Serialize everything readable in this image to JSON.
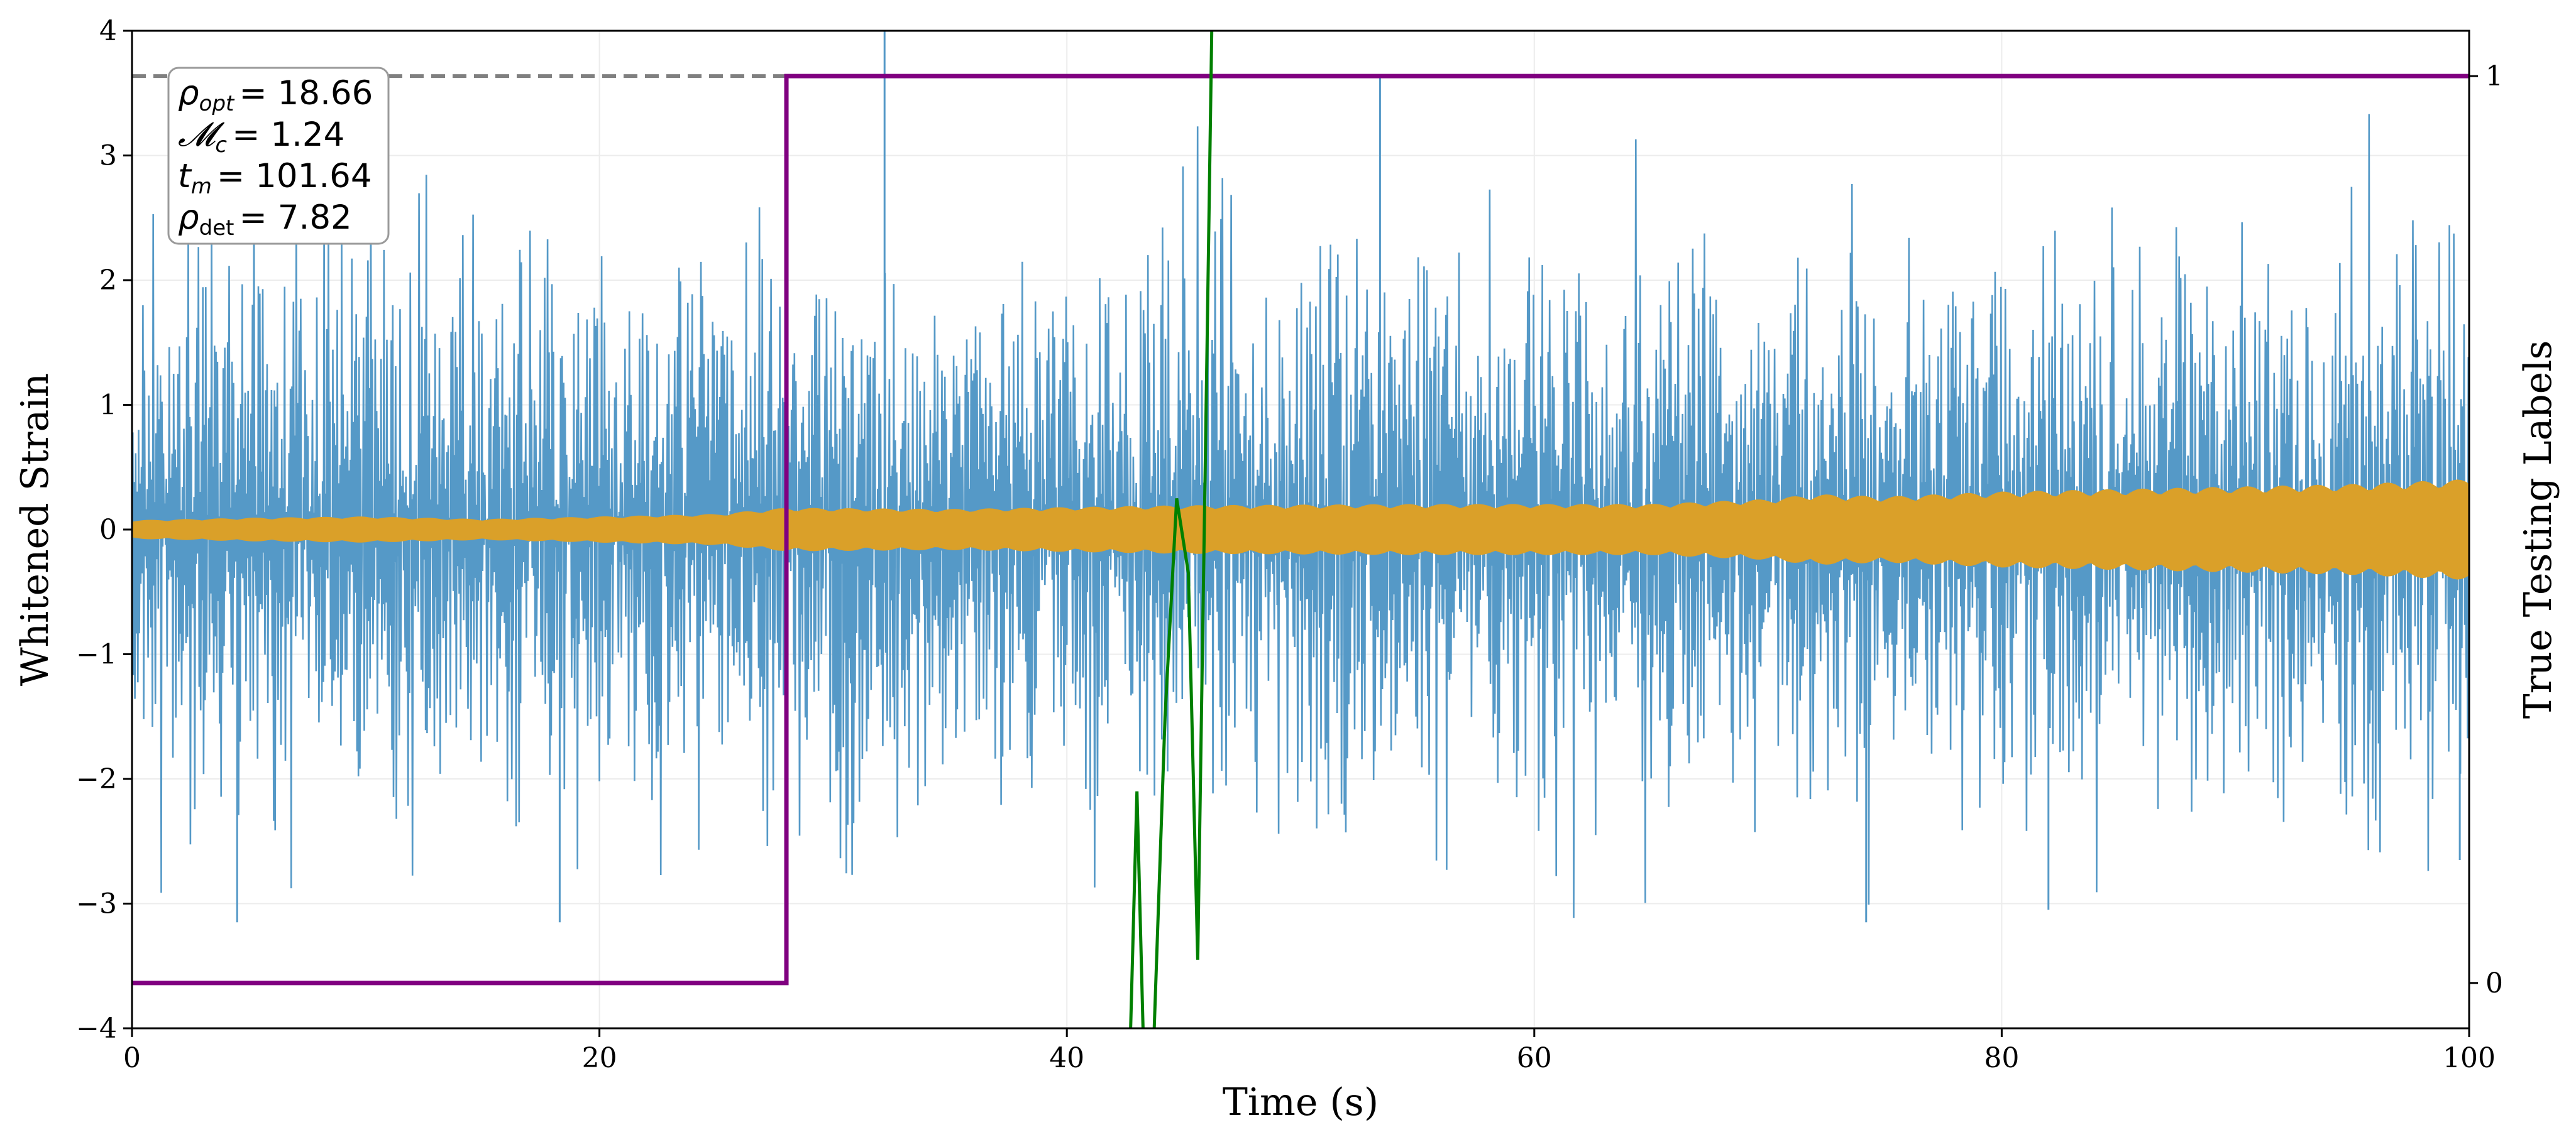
{
  "chart_data": {
    "type": "line",
    "title": "",
    "xlabel": "Time (s)",
    "ylabel": "Whitened Strain",
    "ylabel_right": "True Testing Labels",
    "xlim": [
      0,
      100
    ],
    "ylim": [
      -4,
      4
    ],
    "ylim_right": [
      -0.05,
      1.05
    ],
    "xticks": [
      "0",
      "20",
      "40",
      "60",
      "80",
      "100"
    ],
    "yticks": [
      "−4",
      "−3",
      "−2",
      "−1",
      "0",
      "1",
      "2",
      "3",
      "4"
    ],
    "yticks_right": [
      "0",
      "1"
    ],
    "grid": true,
    "legend": "none",
    "annotation_box": {
      "position": "top-left",
      "lines": [
        {
          "symbol": "ρ",
          "sub": "opt",
          "value": "= 18.66"
        },
        {
          "symbol": "𝓜",
          "sub": "c",
          "value": "= 1.24"
        },
        {
          "symbol": "t",
          "sub": "m",
          "value": "= 101.64"
        },
        {
          "symbol": "ρ",
          "sub": "det",
          "value": "= 7.82"
        }
      ]
    },
    "series": [
      {
        "kind": "noise",
        "color": "#5599c7",
        "approx_envelope": 2.5,
        "peak_spikes": [
          {
            "x": 32.2,
            "y": 4.0
          },
          {
            "x": 53.4,
            "y": 3.65
          },
          {
            "x": 4.5,
            "y": -3.15
          },
          {
            "x": 18.3,
            "y": -3.15
          },
          {
            "x": 74.2,
            "y": -3.15
          },
          {
            "x": 82.0,
            "y": -3.05
          },
          {
            "x": 99.6,
            "y": -2.65
          }
        ]
      },
      {
        "kind": "signal",
        "color": "#daa029",
        "x": [
          0,
          5,
          10,
          15,
          20,
          25,
          28,
          35,
          45,
          55,
          65,
          70,
          72,
          75,
          80,
          85,
          90,
          95,
          100
        ],
        "amplitude": [
          0.07,
          0.09,
          0.1,
          0.08,
          0.1,
          0.12,
          0.17,
          0.16,
          0.19,
          0.2,
          0.2,
          0.24,
          0.28,
          0.26,
          0.3,
          0.32,
          0.34,
          0.36,
          0.4
        ]
      },
      {
        "kind": "labels",
        "color": "#800080",
        "axis": "right",
        "x": [
          0,
          28,
          28,
          100
        ],
        "y": [
          0,
          0,
          1,
          1
        ]
      },
      {
        "kind": "prediction",
        "color": "#008000",
        "x": [
          42.7,
          43.0,
          43.3,
          43.7,
          44.2,
          44.7,
          45.2,
          45.6,
          46.0,
          46.2
        ],
        "y": [
          -4.2,
          -2.1,
          -4.3,
          -4.2,
          -1.5,
          0.25,
          -0.35,
          -3.45,
          1.5,
          4.0
        ]
      },
      {
        "kind": "threshold",
        "color": "#808080",
        "axis": "right",
        "y": 1
      }
    ]
  }
}
